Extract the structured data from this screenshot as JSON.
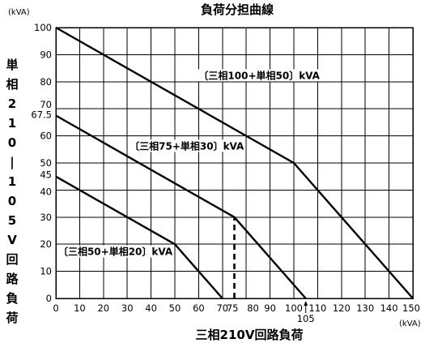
{
  "chart_data": {
    "type": "line",
    "title": "負荷分担曲線",
    "xlabel": "三相210V回路負荷",
    "ylabel": "単相210－105V回路負荷",
    "x_unit": "(kVA)",
    "y_unit": "(kVA)",
    "xlim": [
      0,
      150
    ],
    "ylim": [
      0,
      100
    ],
    "x_ticks": [
      {
        "value": 0,
        "label": "0"
      },
      {
        "value": 10,
        "label": "10"
      },
      {
        "value": 20,
        "label": "20"
      },
      {
        "value": 30,
        "label": "30"
      },
      {
        "value": 40,
        "label": "40"
      },
      {
        "value": 50,
        "label": "50"
      },
      {
        "value": 60,
        "label": "60"
      },
      {
        "value": 70,
        "label": "70"
      },
      {
        "value": 75,
        "label": "75"
      },
      {
        "value": 80,
        "label": "80"
      },
      {
        "value": 90,
        "label": "90"
      },
      {
        "value": 100,
        "label": "100"
      },
      {
        "value": 110,
        "label": "110"
      },
      {
        "value": 120,
        "label": "120"
      },
      {
        "value": 130,
        "label": "130"
      },
      {
        "value": 140,
        "label": "140"
      },
      {
        "value": 150,
        "label": "150"
      }
    ],
    "y_ticks": [
      {
        "value": 0,
        "label": "0"
      },
      {
        "value": 10,
        "label": "10"
      },
      {
        "value": 20,
        "label": "20"
      },
      {
        "value": 30,
        "label": "30"
      },
      {
        "value": 40,
        "label": "40"
      },
      {
        "value": 45,
        "label": "45"
      },
      {
        "value": 50,
        "label": "50"
      },
      {
        "value": 60,
        "label": "60"
      },
      {
        "value": 67.5,
        "label": "67.5"
      },
      {
        "value": 70,
        "label": "70"
      },
      {
        "value": 80,
        "label": "80"
      },
      {
        "value": 90,
        "label": "90"
      },
      {
        "value": 100,
        "label": "100"
      }
    ],
    "grid": true,
    "annotations": [
      {
        "text": "105",
        "x": 105,
        "marker": "arrow-up"
      }
    ],
    "series": [
      {
        "name": "〔三相100+単相50〕kVA",
        "points": [
          [
            0,
            100
          ],
          [
            100,
            50
          ],
          [
            150,
            0
          ]
        ],
        "label_at": [
          60,
          81
        ]
      },
      {
        "name": "〔三相75+単相30〕kVA",
        "points": [
          [
            0,
            67.5
          ],
          [
            75,
            30
          ],
          [
            105,
            0
          ]
        ],
        "label_at": [
          31,
          55
        ]
      },
      {
        "name": "〔三相50+単相20〕kVA",
        "points": [
          [
            0,
            45
          ],
          [
            50,
            20
          ],
          [
            70,
            0
          ]
        ],
        "label_at": [
          1,
          16
        ]
      }
    ],
    "dashed_reference": {
      "x": 75,
      "from_y": 0,
      "to_y": 30
    }
  }
}
